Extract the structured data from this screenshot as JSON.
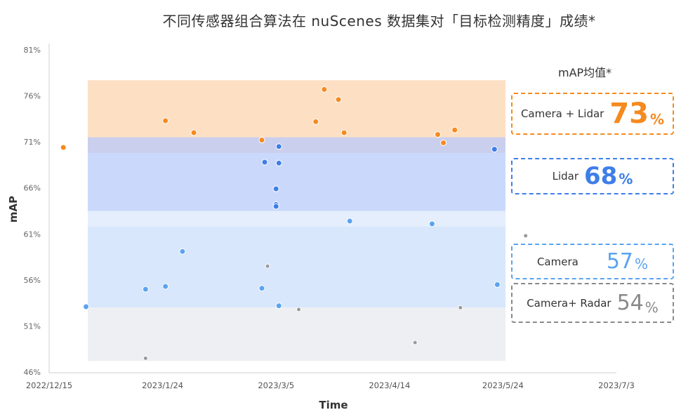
{
  "chart_data": {
    "type": "scatter",
    "title": "不同传感器组合算法在 nuScenes 数据集对「目标检测精度」成绩*",
    "xlabel": "Time",
    "ylabel": "mAP",
    "xlim": [
      "2022-12-15",
      "2023-07-03"
    ],
    "ylim": [
      46,
      81
    ],
    "x_ticks": [
      "2022/12/15",
      "2023/1/24",
      "2023/3/5",
      "2023/4/14",
      "2023/5/24",
      "2023/7/3"
    ],
    "y_ticks": [
      "46%",
      "51%",
      "56%",
      "61%",
      "66%",
      "71%",
      "76%",
      "81%"
    ],
    "bands": [
      {
        "name": "Camera + Lidar",
        "y0": 71.5,
        "y1": 77.7,
        "color": "#fde0c4"
      },
      {
        "name": "Lidar",
        "y0": 63.5,
        "y1": 71.5,
        "color": "#cad9fb"
      },
      {
        "name": "Camera",
        "y0": 53.0,
        "y1": 63.5,
        "color": "#d8e7fb"
      },
      {
        "name": "Camera+ Radar",
        "y0": 47.2,
        "y1": 53.0,
        "color": "#eeeff3"
      }
    ],
    "legend_title": "mAP均值*",
    "series": [
      {
        "name": "Camera + Lidar",
        "color": "#f58a1f",
        "points": [
          {
            "x": "2022-12-20",
            "y": 70.4
          },
          {
            "x": "2023-01-25",
            "y": 73.3
          },
          {
            "x": "2023-02-04",
            "y": 72.0
          },
          {
            "x": "2023-02-28",
            "y": 71.2
          },
          {
            "x": "2023-03-19",
            "y": 73.2
          },
          {
            "x": "2023-03-22",
            "y": 76.7
          },
          {
            "x": "2023-03-27",
            "y": 75.6
          },
          {
            "x": "2023-03-29",
            "y": 72.0
          },
          {
            "x": "2023-05-01",
            "y": 71.8
          },
          {
            "x": "2023-05-03",
            "y": 70.9
          },
          {
            "x": "2023-05-07",
            "y": 72.3
          }
        ]
      },
      {
        "name": "Lidar",
        "color": "#3e7ee8",
        "points": [
          {
            "x": "2023-03-01",
            "y": 68.8
          },
          {
            "x": "2023-03-05",
            "y": 65.9
          },
          {
            "x": "2023-03-05",
            "y": 64.2
          },
          {
            "x": "2023-03-05",
            "y": 64.0
          },
          {
            "x": "2023-03-06",
            "y": 68.7
          },
          {
            "x": "2023-03-06",
            "y": 70.5
          },
          {
            "x": "2023-05-21",
            "y": 70.2
          }
        ]
      },
      {
        "name": "Camera",
        "color": "#5ba3ef",
        "points": [
          {
            "x": "2022-12-28",
            "y": 53.1
          },
          {
            "x": "2023-01-18",
            "y": 55.0
          },
          {
            "x": "2023-01-25",
            "y": 55.3
          },
          {
            "x": "2023-01-31",
            "y": 59.1
          },
          {
            "x": "2023-02-28",
            "y": 55.1
          },
          {
            "x": "2023-03-06",
            "y": 53.2
          },
          {
            "x": "2023-03-31",
            "y": 62.4
          },
          {
            "x": "2023-04-29",
            "y": 62.1
          },
          {
            "x": "2023-05-22",
            "y": 55.5
          }
        ]
      },
      {
        "name": "Camera+ Radar",
        "color": "#9a9a9a",
        "points": [
          {
            "x": "2023-01-18",
            "y": 47.5
          },
          {
            "x": "2023-03-02",
            "y": 57.5
          },
          {
            "x": "2023-03-13",
            "y": 52.8
          },
          {
            "x": "2023-04-23",
            "y": 49.2
          },
          {
            "x": "2023-05-09",
            "y": 53.0
          },
          {
            "x": "2023-06-01",
            "y": 60.8
          }
        ]
      }
    ],
    "legend": [
      {
        "name": "Camera + Lidar",
        "value": "73",
        "unit": "%",
        "color": "#f58a1f"
      },
      {
        "name": "Lidar",
        "value": "68",
        "unit": "%",
        "color": "#3e7ee8"
      },
      {
        "name": "Camera",
        "value": "57",
        "unit": "%",
        "color": "#5ba3ef"
      },
      {
        "name": "Camera+ Radar",
        "value": "54",
        "unit": "%",
        "color": "#8a8a8a"
      }
    ]
  }
}
